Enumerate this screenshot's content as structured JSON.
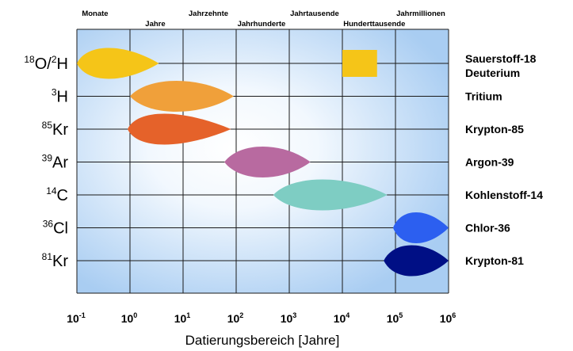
{
  "chart_data": {
    "type": "range-chart",
    "xlabel": "Datierungsbereich [Jahre]",
    "x_scale": "log",
    "xlim": [
      0.1,
      1000000
    ],
    "x_ticks": [
      {
        "base": "10",
        "exp": "-1"
      },
      {
        "base": "10",
        "exp": "0"
      },
      {
        "base": "10",
        "exp": "1"
      },
      {
        "base": "10",
        "exp": "2"
      },
      {
        "base": "10",
        "exp": "3"
      },
      {
        "base": "10",
        "exp": "4"
      },
      {
        "base": "10",
        "exp": "5"
      },
      {
        "base": "10",
        "exp": "6"
      }
    ],
    "time_scale_labels": [
      {
        "text": "Monate",
        "x": 0.22,
        "row": 0
      },
      {
        "text": "Jahre",
        "x": 3,
        "row": 1
      },
      {
        "text": "Jahrzehnte",
        "x": 30,
        "row": 0
      },
      {
        "text": "Jahrhunderte",
        "x": 300,
        "row": 1
      },
      {
        "text": "Jahrtausende",
        "x": 3000,
        "row": 0
      },
      {
        "text": "Hunderttausende",
        "x": 40000,
        "row": 1
      },
      {
        "text": "Jahrmillionen",
        "x": 300000,
        "row": 0
      }
    ],
    "series": [
      {
        "sup1": "18",
        "base1": "O/",
        "sup2": "2",
        "base2": "H",
        "name": "Sauerstoff-18",
        "name2": "Deuterium",
        "ranges": [
          {
            "shape": "lens",
            "min": 0.1,
            "max": 3.5,
            "peak": 0.35,
            "color": "#f5c518"
          },
          {
            "shape": "rect",
            "min": 10000,
            "max": 45000,
            "color": "#f5c518"
          }
        ]
      },
      {
        "sup1": "3",
        "base1": "H",
        "name": "Tritium",
        "ranges": [
          {
            "shape": "lens",
            "min": 1,
            "max": 90,
            "peak": 10,
            "color": "#f0a03a"
          }
        ]
      },
      {
        "sup1": "85",
        "base1": "Kr",
        "name": "Krypton-85",
        "ranges": [
          {
            "shape": "lens",
            "min": 0.9,
            "max": 80,
            "peak": 3,
            "color": "#e5622a"
          }
        ]
      },
      {
        "sup1": "39",
        "base1": "Ar",
        "name": "Argon-39",
        "ranges": [
          {
            "shape": "lens",
            "min": 60,
            "max": 2500,
            "peak": 400,
            "color": "#b86aa0"
          }
        ]
      },
      {
        "sup1": "14",
        "base1": "C",
        "name": "Kohlenstoff-14",
        "ranges": [
          {
            "shape": "lens",
            "min": 500,
            "max": 70000,
            "peak": 5000,
            "color": "#7ecdc3"
          }
        ]
      },
      {
        "sup1": "36",
        "base1": "Cl",
        "name": "Chlor-36",
        "ranges": [
          {
            "shape": "lens",
            "min": 90000,
            "max": 1000000,
            "peak": 250000,
            "color": "#2c5ff0"
          }
        ]
      },
      {
        "sup1": "81",
        "base1": "Kr",
        "name": "Krypton-81",
        "ranges": [
          {
            "shape": "lens",
            "min": 60000,
            "max": 1000000,
            "peak": 220000,
            "color": "#000f85"
          }
        ]
      }
    ],
    "background": {
      "center": "#ffffff",
      "edge": "#a9cdf2"
    }
  }
}
